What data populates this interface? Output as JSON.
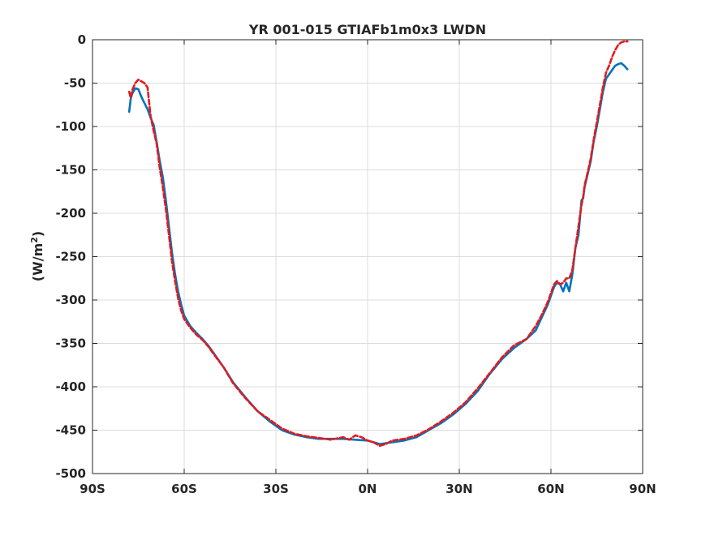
{
  "chart_data": {
    "type": "line",
    "title": "YR 001-015 GTIAFb1m0x3 LWDN",
    "xlabel": "",
    "ylabel_main": "(W/m",
    "ylabel_sup": "2",
    "ylabel_close": ")",
    "xlim": [
      -90,
      90
    ],
    "ylim": [
      -500,
      0
    ],
    "grid": true,
    "x_ticks": [
      {
        "value": -90,
        "label": "90S"
      },
      {
        "value": -60,
        "label": "60S"
      },
      {
        "value": -30,
        "label": "30S"
      },
      {
        "value": 0,
        "label": "0N"
      },
      {
        "value": 30,
        "label": "30N"
      },
      {
        "value": 60,
        "label": "60N"
      },
      {
        "value": 90,
        "label": "90N"
      }
    ],
    "y_ticks": [
      {
        "value": 0,
        "label": "0"
      },
      {
        "value": -50,
        "label": "-50"
      },
      {
        "value": -100,
        "label": "-100"
      },
      {
        "value": -150,
        "label": "-150"
      },
      {
        "value": -200,
        "label": "-200"
      },
      {
        "value": -250,
        "label": "-250"
      },
      {
        "value": -300,
        "label": "-300"
      },
      {
        "value": -350,
        "label": "-350"
      },
      {
        "value": -400,
        "label": "-400"
      },
      {
        "value": -450,
        "label": "-450"
      },
      {
        "value": -500,
        "label": "-500"
      }
    ],
    "series": [
      {
        "color": "#0072bd",
        "style": "solid",
        "x": [
          -78,
          -77.5,
          -77,
          -76,
          -75,
          -74,
          -73,
          -72,
          -71,
          -70,
          -69,
          -68,
          -67,
          -66,
          -65,
          -64,
          -63,
          -62,
          -61,
          -60,
          -58,
          -56,
          -54,
          -52,
          -50,
          -47,
          -44,
          -40,
          -36,
          -32,
          -28,
          -24,
          -20,
          -16,
          -12,
          -8,
          -4,
          0,
          4,
          6,
          8,
          12,
          16,
          20,
          24,
          28,
          32,
          36,
          40,
          44,
          48,
          52,
          55,
          57,
          59,
          60,
          61,
          62,
          63,
          64,
          65,
          66,
          67,
          68,
          69,
          70,
          70.5,
          71,
          72,
          73,
          74,
          75,
          76,
          77,
          78,
          79,
          80,
          81,
          82,
          83,
          84,
          85
        ],
        "y": [
          -83,
          -68,
          -62,
          -56,
          -57,
          -66,
          -73,
          -80,
          -90,
          -98,
          -118,
          -140,
          -158,
          -185,
          -215,
          -245,
          -270,
          -290,
          -305,
          -318,
          -330,
          -338,
          -345,
          -353,
          -363,
          -378,
          -395,
          -412,
          -428,
          -440,
          -450,
          -455,
          -458,
          -460,
          -460,
          -460,
          -461,
          -462,
          -466,
          -465,
          -464,
          -462,
          -458,
          -450,
          -442,
          -432,
          -420,
          -405,
          -385,
          -368,
          -355,
          -345,
          -335,
          -320,
          -305,
          -295,
          -285,
          -280,
          -282,
          -290,
          -280,
          -290,
          -270,
          -240,
          -225,
          -185,
          -183,
          -170,
          -155,
          -140,
          -117,
          -100,
          -80,
          -60,
          -45,
          -40,
          -35,
          -30,
          -28,
          -27,
          -30,
          -34
        ]
      },
      {
        "color": "#e41a1c",
        "style": "dashed",
        "x": [
          -78,
          -77.5,
          -77,
          -76,
          -75,
          -74,
          -73,
          -72,
          -71,
          -70,
          -69,
          -68,
          -67,
          -66,
          -65,
          -64,
          -63,
          -62,
          -61,
          -60,
          -58,
          -56,
          -54,
          -52,
          -50,
          -47,
          -44,
          -40,
          -36,
          -32,
          -28,
          -24,
          -20,
          -16,
          -12,
          -8,
          -6,
          -4,
          -2,
          0,
          2,
          4,
          6,
          8,
          12,
          16,
          20,
          24,
          28,
          32,
          36,
          40,
          44,
          48,
          52,
          55,
          57,
          59,
          60,
          61,
          62,
          63,
          64,
          65,
          66,
          67,
          68,
          69,
          70,
          70.5,
          71,
          72,
          73,
          74,
          75,
          76,
          77,
          78,
          79,
          80,
          81,
          82,
          83,
          84,
          85
        ],
        "y": [
          -60,
          -67,
          -58,
          -50,
          -46,
          -48,
          -50,
          -55,
          -88,
          -105,
          -120,
          -148,
          -170,
          -195,
          -225,
          -255,
          -278,
          -298,
          -312,
          -322,
          -332,
          -340,
          -346,
          -354,
          -364,
          -378,
          -396,
          -413,
          -428,
          -438,
          -448,
          -454,
          -457,
          -459,
          -461,
          -458,
          -461,
          -456,
          -458,
          -462,
          -464,
          -468,
          -466,
          -462,
          -460,
          -456,
          -449,
          -440,
          -430,
          -418,
          -402,
          -384,
          -366,
          -352,
          -345,
          -330,
          -317,
          -302,
          -292,
          -282,
          -278,
          -282,
          -280,
          -275,
          -275,
          -265,
          -240,
          -215,
          -190,
          -182,
          -168,
          -153,
          -137,
          -115,
          -95,
          -75,
          -55,
          -38,
          -30,
          -20,
          -12,
          -6,
          -3,
          -2,
          -2
        ]
      }
    ]
  }
}
